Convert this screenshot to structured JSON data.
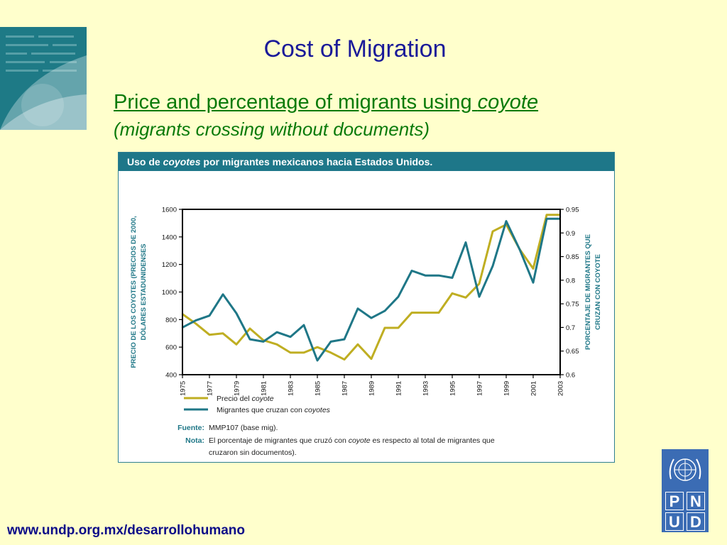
{
  "slide": {
    "title": "Cost of Migration",
    "subtitle_main": "Price and percentage of migrants using ",
    "subtitle_italic": "coyote",
    "subtitle_note": "(migrants crossing without documents)",
    "footer_link": "www.undp.org.mx/desarrollohumano"
  },
  "logo": {
    "letters": [
      "P",
      "N",
      "U",
      "D"
    ],
    "color": "#3b6cb4"
  },
  "figure": {
    "header_pre": "Uso de ",
    "header_italic": "coyotes",
    "header_post": " por migrantes mexicanos hacia Estados Unidos.",
    "fuente_label": "Fuente:",
    "fuente_text": "MMP107 (base mig).",
    "nota_label": "Nota:",
    "nota_line1_pre": "El porcentaje de migrantes que cruzó con ",
    "nota_line1_italic": "coyote",
    "nota_line1_post": " es respecto al total de migrantes que",
    "nota_line2": "cruzaron sin documentos)."
  },
  "chart_data": {
    "type": "line",
    "title": "Uso de coyotes por migrantes mexicanos hacia Estados Unidos.",
    "ylabel_left_line1": "PRECIO DE LOS COYOTES (PRECIOS DE 2000,",
    "ylabel_left_line2": "DÓLARES ESTADUNIDENSES",
    "ylabel_right_line1": "PORCENTAJE DE MIGRANTES QUE",
    "ylabel_right_line2": "CRUZAN CON COYOTE",
    "ylim_left": [
      400,
      1600
    ],
    "ylim_right": [
      0.6,
      0.95
    ],
    "xlim": [
      1975,
      2003
    ],
    "yticks_left": [
      400,
      600,
      800,
      1000,
      1200,
      1400,
      1600
    ],
    "yticks_right": [
      0.6,
      0.65,
      0.7,
      0.75,
      0.8,
      0.85,
      0.9,
      0.95
    ],
    "xticks": [
      1975,
      1977,
      1979,
      1981,
      1983,
      1985,
      1987,
      1989,
      1991,
      1993,
      1995,
      1997,
      1999,
      2001,
      2003
    ],
    "series": [
      {
        "name": "Precio del coyote",
        "axis": "left",
        "color": "#bfae22",
        "x": [
          1975,
          1976,
          1977,
          1978,
          1979,
          1980,
          1981,
          1982,
          1983,
          1984,
          1985,
          1986,
          1987,
          1988,
          1989,
          1990,
          1991,
          1992,
          1993,
          1994,
          1995,
          1996,
          1997,
          1998,
          1999,
          2000,
          2001,
          2002,
          2003
        ],
        "values": [
          840,
          770,
          690,
          700,
          620,
          735,
          650,
          620,
          560,
          560,
          600,
          560,
          510,
          620,
          515,
          740,
          740,
          850,
          850,
          850,
          990,
          960,
          1060,
          1440,
          1490,
          1310,
          1170,
          1560,
          1560
        ]
      },
      {
        "name": "Migrantes que cruzan con coyotes",
        "axis": "right",
        "color": "#1f7787",
        "x": [
          1975,
          1976,
          1977,
          1978,
          1979,
          1980,
          1981,
          1982,
          1983,
          1984,
          1985,
          1986,
          1987,
          1988,
          1989,
          1990,
          1991,
          1992,
          1993,
          1994,
          1995,
          1996,
          1997,
          1998,
          1999,
          2000,
          2001,
          2002,
          2003
        ],
        "values": [
          0.7,
          0.715,
          0.725,
          0.77,
          0.73,
          0.675,
          0.67,
          0.69,
          0.68,
          0.705,
          0.63,
          0.67,
          0.675,
          0.74,
          0.72,
          0.735,
          0.765,
          0.82,
          0.81,
          0.81,
          0.805,
          0.88,
          0.765,
          0.83,
          0.925,
          0.865,
          0.795,
          0.93,
          0.93
        ]
      }
    ],
    "legend": {
      "position": "bottom-left",
      "entries": [
        {
          "pre": "Precio del ",
          "italic": "coyote",
          "color": "#bfae22"
        },
        {
          "pre": "Migrantes que cruzan con ",
          "italic": "coyotes",
          "color": "#1f7787"
        }
      ]
    }
  }
}
